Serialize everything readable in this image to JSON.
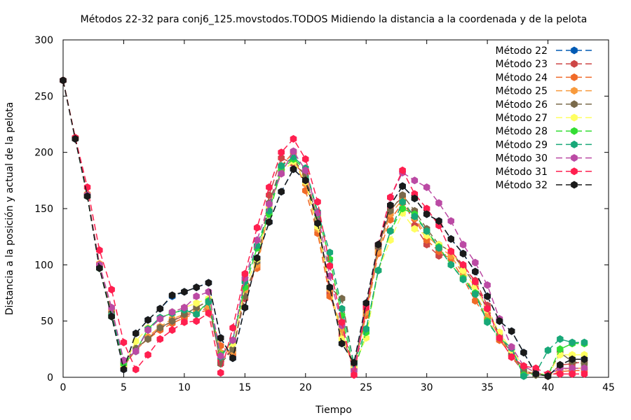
{
  "chart_data": {
    "type": "line",
    "title": "Métodos 22-32 para conj6_125.movstodos.TODOS Midiendo la distancia a la coordenada y de la pelota",
    "xlabel": "Tiempo",
    "ylabel": "Distancia a la posición y actual de la pelota",
    "xlim": [
      0,
      45
    ],
    "ylim": [
      0,
      300
    ],
    "xticks": [
      0,
      5,
      10,
      15,
      20,
      25,
      30,
      35,
      40,
      45
    ],
    "yticks": [
      0,
      50,
      100,
      150,
      200,
      250,
      300
    ],
    "grid": false,
    "legend_position": "top-right",
    "x": [
      0,
      1,
      2,
      3,
      4,
      5,
      6,
      7,
      8,
      9,
      10,
      11,
      12,
      13,
      14,
      15,
      16,
      17,
      18,
      19,
      20,
      21,
      22,
      23,
      24,
      25,
      26,
      27,
      28,
      29,
      30,
      31,
      32,
      33,
      34,
      35,
      36,
      37,
      38,
      39,
      40,
      41,
      42,
      43
    ],
    "series": [
      {
        "name": "Método 22",
        "color": "#005ab4",
        "values": [
          264,
          212,
          161,
          97,
          54,
          7,
          39,
          51,
          61,
          72,
          76,
          80,
          84,
          35,
          17,
          62,
          106,
          138,
          165,
          185,
          175,
          137,
          80,
          30,
          13,
          66,
          118,
          153,
          170,
          159,
          145,
          139,
          123,
          110,
          94,
          72,
          50,
          41,
          22,
          3,
          1,
          11,
          16,
          16
        ]
      },
      {
        "name": "Método 23",
        "color": "#cd4646",
        "values": [
          264,
          213,
          162,
          100,
          58,
          10,
          24,
          35,
          43,
          50,
          55,
          58,
          62,
          15,
          25,
          70,
          100,
          162,
          195,
          190,
          180,
          140,
          75,
          38,
          8,
          60,
          115,
          150,
          160,
          135,
          118,
          108,
          110,
          98,
          86,
          64,
          35,
          18,
          5,
          3,
          1,
          11,
          12,
          14
        ]
      },
      {
        "name": "Método 24",
        "color": "#f06a28",
        "values": [
          264,
          213,
          162,
          99,
          60,
          9,
          25,
          34,
          42,
          48,
          53,
          57,
          60,
          28,
          20,
          78,
          97,
          150,
          188,
          200,
          166,
          128,
          72,
          43,
          9,
          55,
          110,
          140,
          155,
          141,
          122,
          112,
          105,
          88,
          68,
          52,
          33,
          20,
          4,
          3,
          1,
          5,
          6,
          6
        ]
      },
      {
        "name": "Método 25",
        "color": "#f89a3c",
        "values": [
          264,
          213,
          163,
          101,
          58,
          11,
          24,
          36,
          45,
          52,
          56,
          60,
          63,
          22,
          23,
          77,
          100,
          148,
          185,
          195,
          172,
          132,
          78,
          41,
          8,
          58,
          112,
          145,
          158,
          142,
          126,
          116,
          108,
          92,
          74,
          55,
          36,
          20,
          6,
          3,
          1,
          7,
          8,
          8
        ]
      },
      {
        "name": "Método 26",
        "color": "#7a6a4a",
        "values": [
          264,
          213,
          162,
          98,
          57,
          13,
          26,
          34,
          44,
          50,
          56,
          62,
          68,
          12,
          25,
          72,
          103,
          155,
          188,
          195,
          178,
          140,
          80,
          70,
          10,
          62,
          116,
          148,
          162,
          148,
          132,
          118,
          112,
          98,
          82,
          60,
          38,
          21,
          6,
          2,
          2,
          22,
          14,
          12
        ]
      },
      {
        "name": "Método 27",
        "color": "#ffff60",
        "values": [
          264,
          212,
          161,
          97,
          55,
          10,
          32,
          44,
          52,
          58,
          62,
          66,
          70,
          20,
          30,
          80,
          105,
          150,
          182,
          192,
          174,
          134,
          80,
          34,
          10,
          35,
          95,
          122,
          146,
          132,
          126,
          118,
          112,
          95,
          80,
          60,
          40,
          24,
          10,
          4,
          2,
          20,
          20,
          20
        ]
      },
      {
        "name": "Método 28",
        "color": "#33dd33",
        "values": [
          264,
          212,
          161,
          97,
          54,
          12,
          23,
          43,
          53,
          57,
          60,
          56,
          68,
          20,
          33,
          80,
          115,
          145,
          185,
          194,
          185,
          145,
          105,
          55,
          6,
          40,
          95,
          130,
          150,
          145,
          130,
          116,
          100,
          88,
          75,
          50,
          35,
          26,
          2,
          3,
          2,
          25,
          30,
          30
        ]
      },
      {
        "name": "Método 29",
        "color": "#18a878",
        "values": [
          264,
          212,
          161,
          97,
          55,
          15,
          23,
          43,
          53,
          57,
          60,
          56,
          67,
          18,
          33,
          85,
          117,
          148,
          188,
          196,
          186,
          147,
          111,
          61,
          12,
          43,
          95,
          130,
          156,
          143,
          130,
          115,
          100,
          87,
          74,
          49,
          35,
          26,
          1,
          4,
          24,
          34,
          31,
          31
        ]
      },
      {
        "name": "Método 30",
        "color": "#bb4aa4",
        "values": [
          264,
          212,
          162,
          100,
          62,
          15,
          23,
          42,
          52,
          58,
          62,
          72,
          76,
          19,
          33,
          88,
          122,
          154,
          181,
          201,
          184,
          146,
          90,
          46,
          6,
          63,
          118,
          160,
          182,
          175,
          169,
          155,
          139,
          118,
          102,
          82,
          52,
          27,
          10,
          4,
          2,
          8,
          8,
          8
        ]
      },
      {
        "name": "Método 31",
        "color": "#ff1f4f",
        "values": [
          264,
          213,
          169,
          113,
          78,
          31,
          7,
          20,
          34,
          42,
          49,
          50,
          57,
          4,
          44,
          92,
          133,
          169,
          200,
          212,
          194,
          156,
          99,
          49,
          2,
          62,
          118,
          160,
          184,
          163,
          150,
          135,
          112,
          100,
          85,
          61,
          35,
          18,
          10,
          8,
          3,
          3,
          3,
          3
        ]
      },
      {
        "name": "Método 32",
        "color": "#1a1a1a",
        "values": [
          264,
          212,
          161,
          97,
          54,
          7,
          39,
          51,
          61,
          73,
          76,
          80,
          84,
          35,
          17,
          62,
          106,
          138,
          165,
          185,
          175,
          137,
          80,
          30,
          13,
          66,
          118,
          153,
          170,
          159,
          145,
          139,
          123,
          110,
          94,
          72,
          50,
          41,
          22,
          3,
          1,
          11,
          16,
          16
        ]
      }
    ]
  }
}
